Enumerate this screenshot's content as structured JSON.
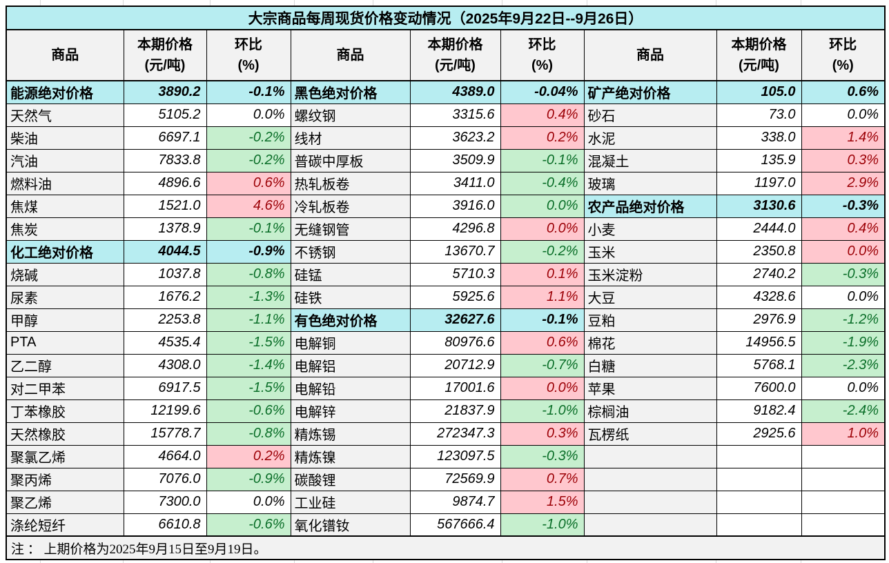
{
  "title": "大宗商品每周现货价格变动情况（2025年9月22日--9月26日）",
  "header": {
    "commodity": "商品",
    "price_label": "本期价格",
    "price_unit": "(元/吨)",
    "pct_label": "环比",
    "pct_unit": "(%)"
  },
  "note": "注 ： 上期价格为2025年9月15日至9月19日。",
  "colors": {
    "title_bg": "#b7edf1",
    "category_bg": "#b7edf1",
    "header_bg": "#f2f2f2",
    "name_bg": "#f2f2f2",
    "up_bg": "#ffc7ce",
    "up_text": "#9c0006",
    "down_bg": "#c6efce",
    "down_text": "#0a6e28"
  },
  "groups": [
    {
      "rows": [
        {
          "kind": "category",
          "name": "能源绝对价格",
          "price": "3890.2",
          "pct": "-0.1%"
        },
        {
          "kind": "item",
          "name": "天然气",
          "price": "5105.2",
          "pct": "0.0%",
          "trend": "flat"
        },
        {
          "kind": "item",
          "name": "柴油",
          "price": "6697.1",
          "pct": "-0.2%",
          "trend": "down"
        },
        {
          "kind": "item",
          "name": "汽油",
          "price": "7833.8",
          "pct": "-0.2%",
          "trend": "down"
        },
        {
          "kind": "item",
          "name": "燃料油",
          "price": "4896.6",
          "pct": "0.6%",
          "trend": "up"
        },
        {
          "kind": "item",
          "name": "焦煤",
          "price": "1521.0",
          "pct": "4.6%",
          "trend": "up"
        },
        {
          "kind": "item",
          "name": "焦炭",
          "price": "1378.9",
          "pct": "-0.1%",
          "trend": "down"
        },
        {
          "kind": "category",
          "name": "化工绝对价格",
          "price": "4044.5",
          "pct": "-0.9%"
        },
        {
          "kind": "item",
          "name": "烧碱",
          "price": "1037.8",
          "pct": "-0.8%",
          "trend": "down"
        },
        {
          "kind": "item",
          "name": "尿素",
          "price": "1676.2",
          "pct": "-1.3%",
          "trend": "down"
        },
        {
          "kind": "item",
          "name": "甲醇",
          "price": "2253.8",
          "pct": "-1.1%",
          "trend": "down"
        },
        {
          "kind": "item",
          "name": "PTA",
          "price": "4535.4",
          "pct": "-1.5%",
          "trend": "down"
        },
        {
          "kind": "item",
          "name": "乙二醇",
          "price": "4308.0",
          "pct": "-1.4%",
          "trend": "down"
        },
        {
          "kind": "item",
          "name": "对二甲苯",
          "price": "6917.5",
          "pct": "-1.5%",
          "trend": "down"
        },
        {
          "kind": "item",
          "name": "丁苯橡胶",
          "price": "12199.6",
          "pct": "-0.6%",
          "trend": "down"
        },
        {
          "kind": "item",
          "name": "天然橡胶",
          "price": "15778.7",
          "pct": "-0.8%",
          "trend": "down"
        },
        {
          "kind": "item",
          "name": "聚氯乙烯",
          "price": "4664.0",
          "pct": "0.2%",
          "trend": "up"
        },
        {
          "kind": "item",
          "name": "聚丙烯",
          "price": "7076.0",
          "pct": "-0.9%",
          "trend": "down"
        },
        {
          "kind": "item",
          "name": "聚乙烯",
          "price": "7300.0",
          "pct": "0.0%",
          "trend": "flat"
        },
        {
          "kind": "item",
          "name": "涤纶短纤",
          "price": "6610.8",
          "pct": "-0.6%",
          "trend": "down"
        }
      ]
    },
    {
      "rows": [
        {
          "kind": "category",
          "name": "黑色绝对价格",
          "price": "4389.0",
          "pct": "-0.04%"
        },
        {
          "kind": "item",
          "name": "螺纹钢",
          "price": "3315.6",
          "pct": "0.4%",
          "trend": "up"
        },
        {
          "kind": "item",
          "name": "线材",
          "price": "3623.2",
          "pct": "0.2%",
          "trend": "up"
        },
        {
          "kind": "item",
          "name": "普碳中厚板",
          "price": "3509.9",
          "pct": "-0.1%",
          "trend": "down"
        },
        {
          "kind": "item",
          "name": "热轧板卷",
          "price": "3411.0",
          "pct": "-0.4%",
          "trend": "down"
        },
        {
          "kind": "item",
          "name": "冷轧板卷",
          "price": "3916.0",
          "pct": "0.0%",
          "trend": "down"
        },
        {
          "kind": "item",
          "name": "无缝钢管",
          "price": "4296.8",
          "pct": "0.0%",
          "trend": "up"
        },
        {
          "kind": "item",
          "name": "不锈钢",
          "price": "13670.7",
          "pct": "-0.2%",
          "trend": "down"
        },
        {
          "kind": "item",
          "name": "硅锰",
          "price": "5710.3",
          "pct": "0.1%",
          "trend": "up"
        },
        {
          "kind": "item",
          "name": "硅铁",
          "price": "5925.6",
          "pct": "1.1%",
          "trend": "up"
        },
        {
          "kind": "category",
          "name": "有色绝对价格",
          "price": "32627.6",
          "pct": "-0.1%"
        },
        {
          "kind": "item",
          "name": "电解铜",
          "price": "80976.6",
          "pct": "0.6%",
          "trend": "up"
        },
        {
          "kind": "item",
          "name": "电解铝",
          "price": "20712.9",
          "pct": "-0.7%",
          "trend": "down"
        },
        {
          "kind": "item",
          "name": "电解铅",
          "price": "17001.6",
          "pct": "0.0%",
          "trend": "up"
        },
        {
          "kind": "item",
          "name": "电解锌",
          "price": "21837.9",
          "pct": "-1.0%",
          "trend": "down"
        },
        {
          "kind": "item",
          "name": "精炼锡",
          "price": "272347.3",
          "pct": "0.3%",
          "trend": "up"
        },
        {
          "kind": "item",
          "name": "精炼镍",
          "price": "123097.5",
          "pct": "-0.3%",
          "trend": "down"
        },
        {
          "kind": "item",
          "name": "碳酸锂",
          "price": "72569.9",
          "pct": "0.7%",
          "trend": "up"
        },
        {
          "kind": "item",
          "name": "工业硅",
          "price": "9874.7",
          "pct": "1.5%",
          "trend": "up"
        },
        {
          "kind": "item",
          "name": "氧化镨钕",
          "price": "567666.4",
          "pct": "-1.0%",
          "trend": "down"
        }
      ]
    },
    {
      "rows": [
        {
          "kind": "category",
          "name": "矿产绝对价格",
          "price": "105.0",
          "pct": "0.6%"
        },
        {
          "kind": "item",
          "name": "砂石",
          "price": "73.0",
          "pct": "0.0%",
          "trend": "flat"
        },
        {
          "kind": "item",
          "name": "水泥",
          "price": "338.0",
          "pct": "1.4%",
          "trend": "up"
        },
        {
          "kind": "item",
          "name": "混凝土",
          "price": "135.9",
          "pct": "0.3%",
          "trend": "up"
        },
        {
          "kind": "item",
          "name": "玻璃",
          "price": "1197.0",
          "pct": "2.9%",
          "trend": "up"
        },
        {
          "kind": "category",
          "name": "农产品绝对价格",
          "price": "3130.6",
          "pct": "-0.3%"
        },
        {
          "kind": "item",
          "name": "小麦",
          "price": "2444.0",
          "pct": "0.4%",
          "trend": "up"
        },
        {
          "kind": "item",
          "name": "玉米",
          "price": "2350.8",
          "pct": "0.0%",
          "trend": "up"
        },
        {
          "kind": "item",
          "name": "玉米淀粉",
          "price": "2740.2",
          "pct": "-0.3%",
          "trend": "down"
        },
        {
          "kind": "item",
          "name": "大豆",
          "price": "4328.6",
          "pct": "0.0%",
          "trend": "flat"
        },
        {
          "kind": "item",
          "name": "豆粕",
          "price": "2976.9",
          "pct": "-1.2%",
          "trend": "down"
        },
        {
          "kind": "item",
          "name": "棉花",
          "price": "14956.5",
          "pct": "-1.9%",
          "trend": "down"
        },
        {
          "kind": "item",
          "name": "白糖",
          "price": "5768.1",
          "pct": "-2.3%",
          "trend": "down"
        },
        {
          "kind": "item",
          "name": "苹果",
          "price": "7600.0",
          "pct": "0.0%",
          "trend": "flat"
        },
        {
          "kind": "item",
          "name": "棕榈油",
          "price": "9182.4",
          "pct": "-2.4%",
          "trend": "down"
        },
        {
          "kind": "item",
          "name": "瓦楞纸",
          "price": "2925.6",
          "pct": "1.0%",
          "trend": "up"
        },
        {
          "kind": "empty",
          "name": "",
          "price": "",
          "pct": ""
        },
        {
          "kind": "empty",
          "name": "",
          "price": "",
          "pct": ""
        },
        {
          "kind": "empty",
          "name": "",
          "price": "",
          "pct": ""
        },
        {
          "kind": "empty",
          "name": "",
          "price": "",
          "pct": ""
        }
      ]
    }
  ]
}
